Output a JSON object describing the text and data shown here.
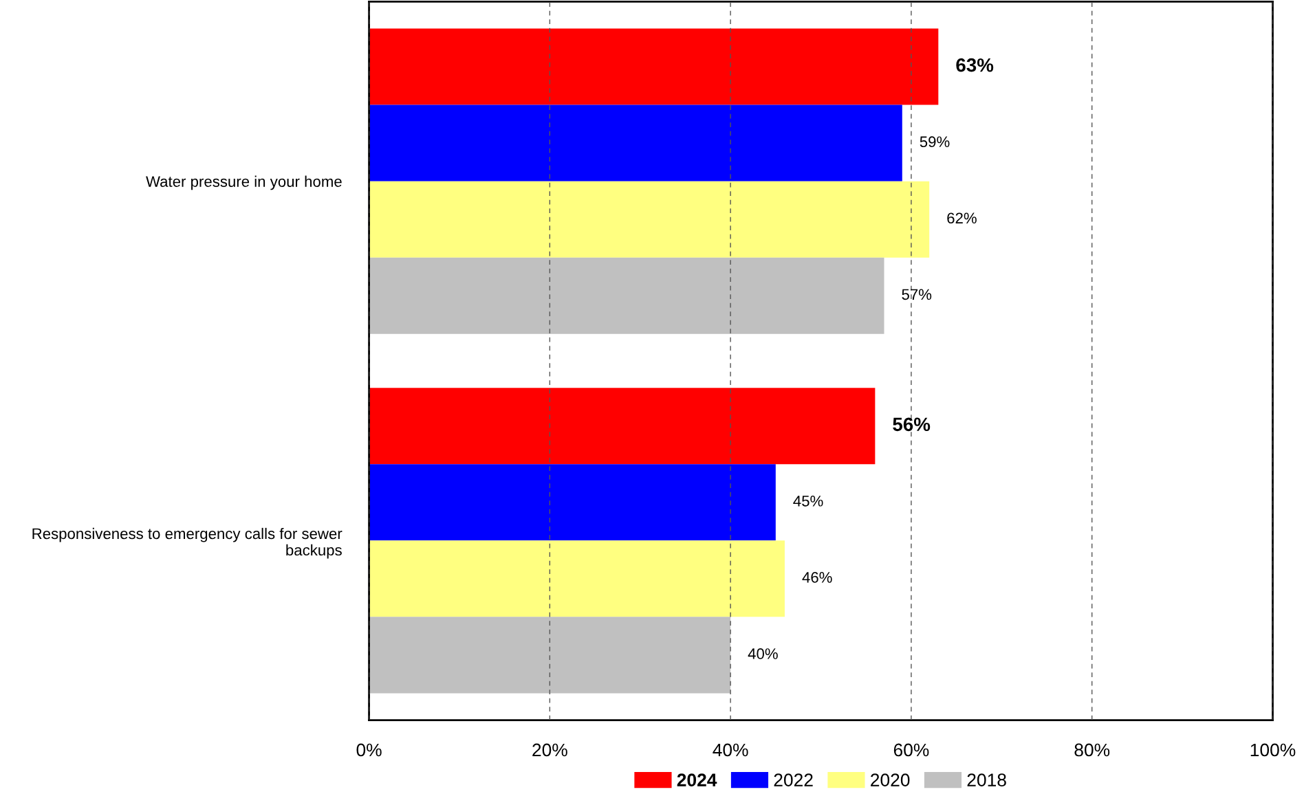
{
  "chart_data": {
    "type": "bar",
    "orientation": "horizontal",
    "categories": [
      "Water pressure in your home",
      "Responsiveness to emergency calls for sewer backups"
    ],
    "series": [
      {
        "name": "2024",
        "color": "#ff0000",
        "values": [
          63,
          56
        ],
        "value_labels": [
          "63%",
          "56%"
        ]
      },
      {
        "name": "2022",
        "color": "#0000ff",
        "values": [
          59,
          45
        ],
        "value_labels": [
          "59%",
          "45%"
        ]
      },
      {
        "name": "2020",
        "color": "#ffff80",
        "values": [
          62,
          46
        ],
        "value_labels": [
          "62%",
          "46%"
        ]
      },
      {
        "name": "2018",
        "color": "#c0c0c0",
        "values": [
          57,
          40
        ],
        "value_labels": [
          "57%",
          "40%"
        ]
      }
    ],
    "xlim": [
      0,
      100
    ],
    "xticks": [
      {
        "value": 0,
        "label": "0%"
      },
      {
        "value": 20,
        "label": "20%"
      },
      {
        "value": 40,
        "label": "40%"
      },
      {
        "value": 60,
        "label": "60%"
      },
      {
        "value": 80,
        "label": "80%"
      },
      {
        "value": 100,
        "label": "100%"
      }
    ],
    "grid": "x",
    "legend": "bottom"
  }
}
